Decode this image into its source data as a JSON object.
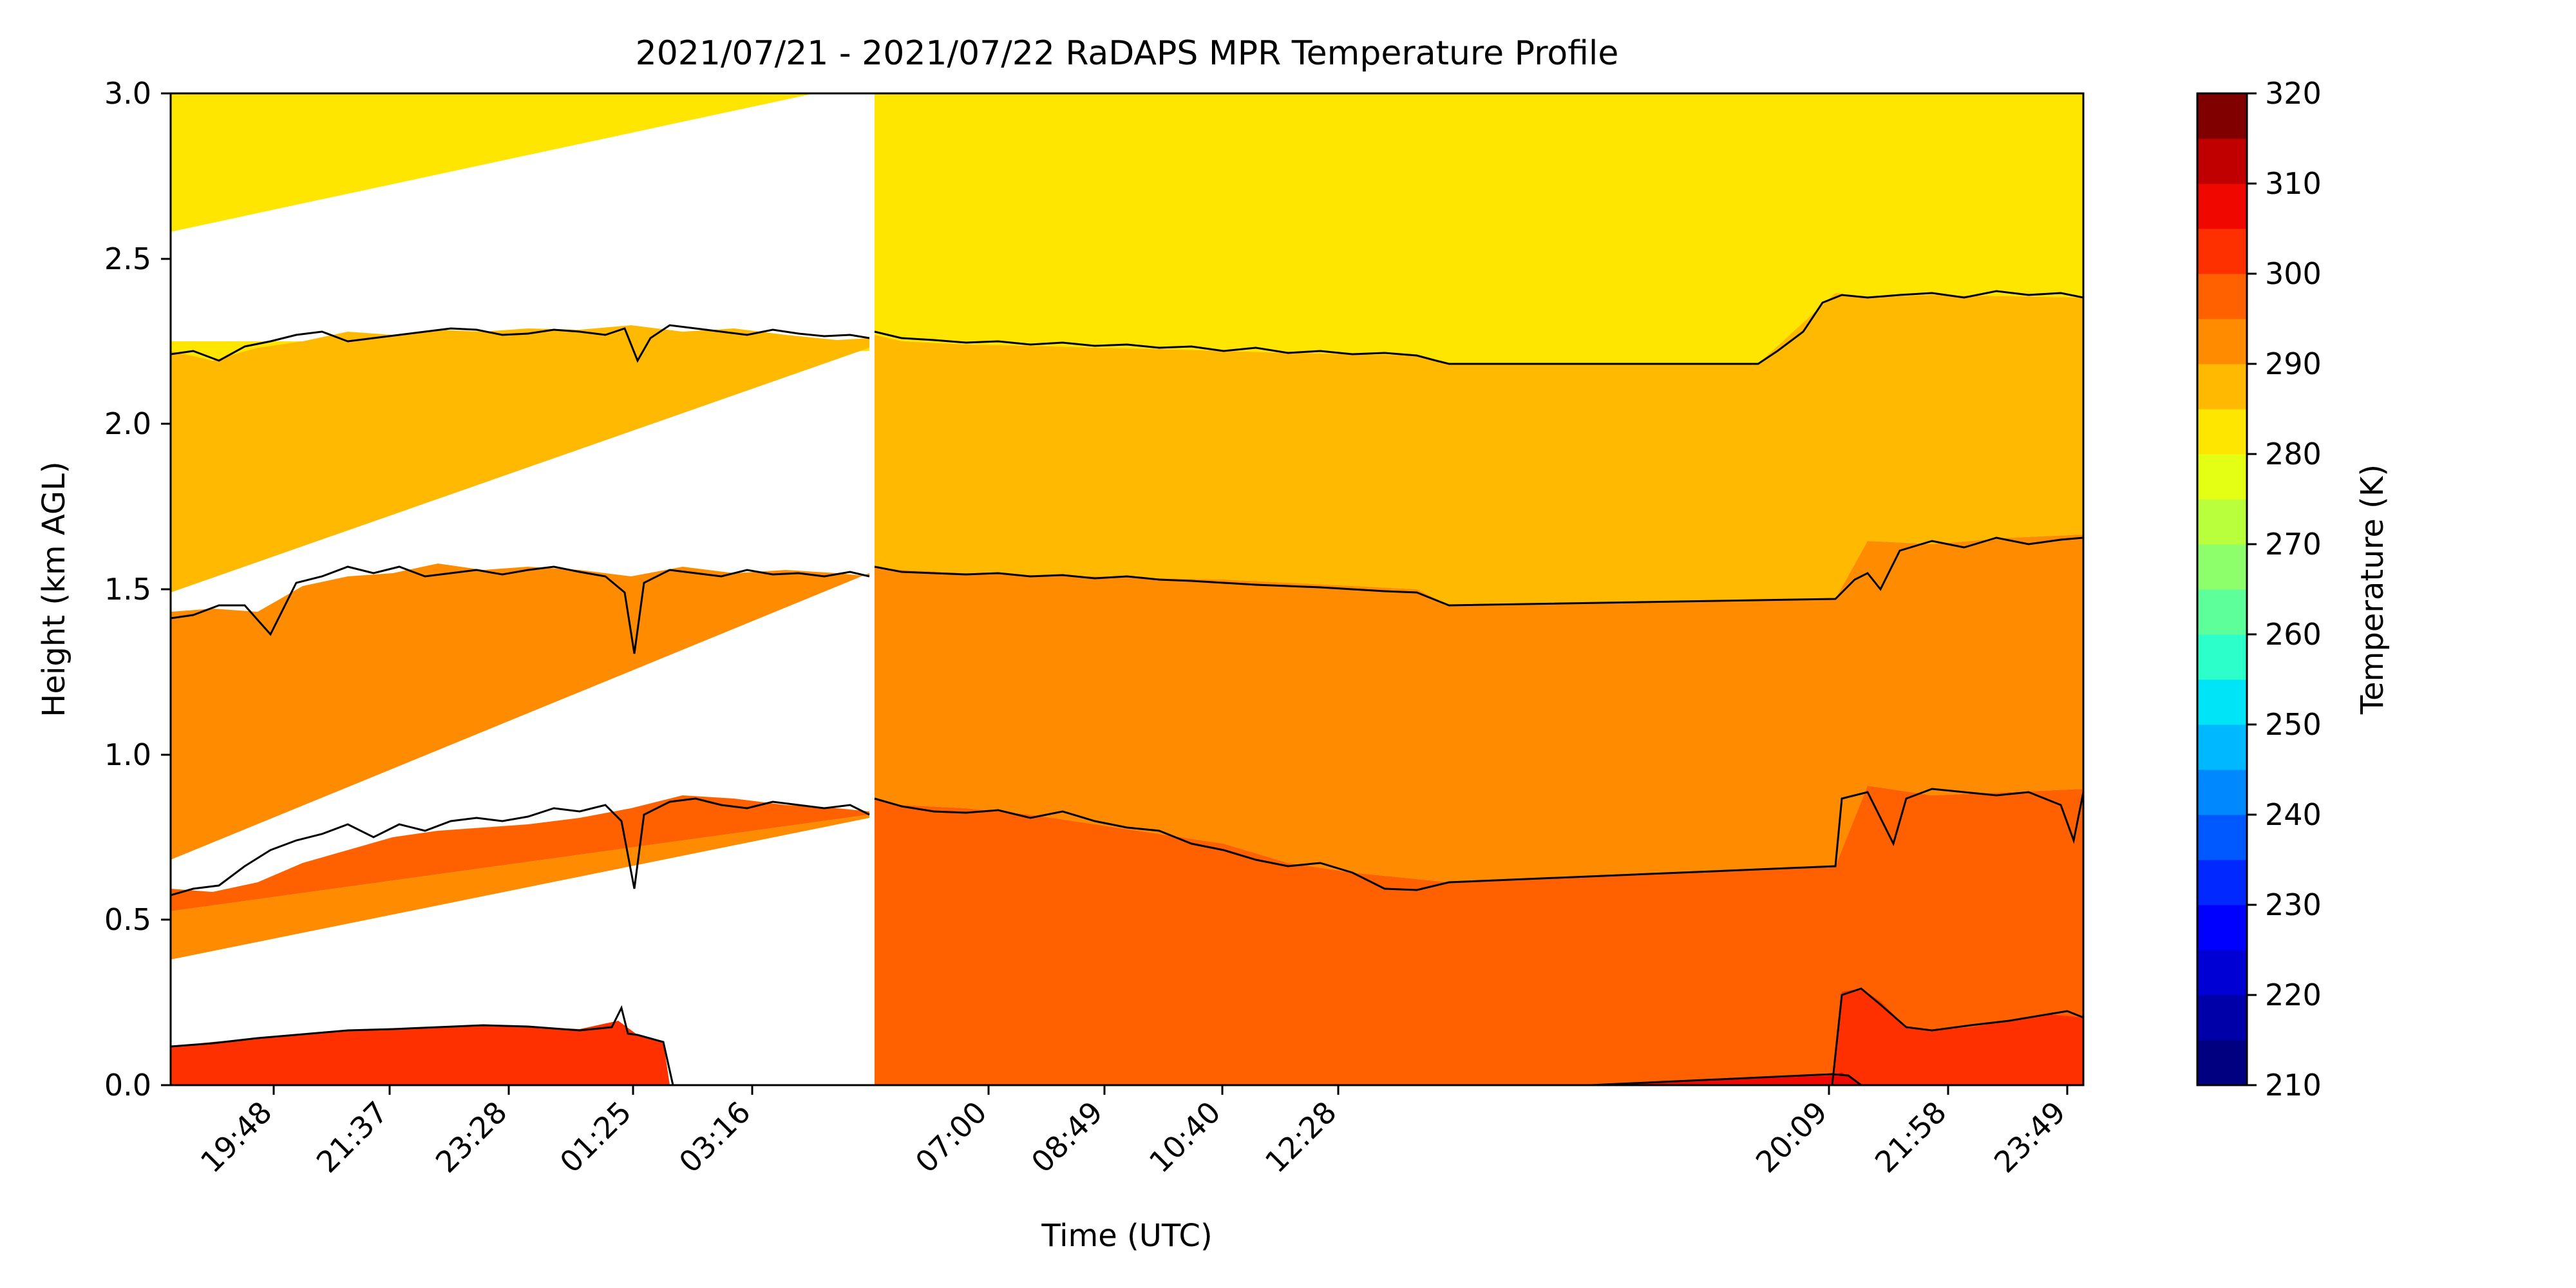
{
  "chart_data": {
    "type": "contour",
    "title": "2021/07/21 - 2021/07/22 RaDAPS MPR Temperature Profile",
    "xlabel": "Time (UTC)",
    "ylabel": "Height (km AGL)",
    "ylim": [
      0,
      3
    ],
    "y_ticks": [
      "0.0",
      "0.5",
      "1.0",
      "1.5",
      "2.0",
      "2.5",
      "3.0"
    ],
    "x_ticks": [
      "19:48",
      "21:37",
      "23:28",
      "01:25",
      "03:16",
      "07:00",
      "08:49",
      "10:40",
      "12:28",
      "20:09",
      "21:58",
      "23:49"
    ],
    "colorbar": {
      "label": "Temperature (K)",
      "range": [
        210,
        320
      ],
      "ticks": [
        "210",
        "220",
        "230",
        "240",
        "250",
        "260",
        "270",
        "280",
        "290",
        "300",
        "310",
        "320"
      ],
      "levels": [
        {
          "from": 210,
          "to": 215,
          "color": "#000080"
        },
        {
          "from": 215,
          "to": 220,
          "color": "#0000a8"
        },
        {
          "from": 220,
          "to": 225,
          "color": "#0000d4"
        },
        {
          "from": 225,
          "to": 230,
          "color": "#0000ff"
        },
        {
          "from": 230,
          "to": 235,
          "color": "#0028ff"
        },
        {
          "from": 235,
          "to": 240,
          "color": "#0058ff"
        },
        {
          "from": 240,
          "to": 245,
          "color": "#0088ff"
        },
        {
          "from": 245,
          "to": 250,
          "color": "#00b8ff"
        },
        {
          "from": 250,
          "to": 255,
          "color": "#00e4f8"
        },
        {
          "from": 255,
          "to": 260,
          "color": "#2cffca"
        },
        {
          "from": 260,
          "to": 265,
          "color": "#5cff9a"
        },
        {
          "from": 265,
          "to": 270,
          "color": "#8cff6a"
        },
        {
          "from": 270,
          "to": 275,
          "color": "#baff3c"
        },
        {
          "from": 275,
          "to": 280,
          "color": "#e4ff14"
        },
        {
          "from": 280,
          "to": 285,
          "color": "#ffe600"
        },
        {
          "from": 285,
          "to": 290,
          "color": "#ffb900"
        },
        {
          "from": 290,
          "to": 295,
          "color": "#ff8c00"
        },
        {
          "from": 295,
          "to": 300,
          "color": "#ff6000"
        },
        {
          "from": 300,
          "to": 305,
          "color": "#ff3000"
        },
        {
          "from": 305,
          "to": 310,
          "color": "#f00800"
        },
        {
          "from": 310,
          "to": 315,
          "color": "#c00000"
        },
        {
          "from": 315,
          "to": 320,
          "color": "#800000"
        }
      ]
    },
    "contour_lines_K": [
      285,
      290,
      295,
      300,
      305
    ],
    "contour_heights_km": {
      "segment_1": {
        "time_range": [
          "19:14",
          "04:40"
        ],
        "285": [
          2.18,
          2.2,
          2.22,
          2.24,
          2.28,
          2.26,
          2.25,
          2.25,
          2.26,
          2.27,
          2.28,
          2.27,
          2.26,
          2.25,
          2.27,
          2.28,
          2.27,
          2.2,
          2.27,
          2.3,
          2.26,
          2.25,
          2.26,
          2.24,
          2.25
        ],
        "290": [
          1.42,
          1.44,
          1.38,
          1.48,
          1.52,
          1.56,
          1.55,
          1.53,
          1.55,
          1.55,
          1.56,
          1.55,
          1.54,
          1.56,
          1.48,
          1.32,
          1.5,
          1.55,
          1.56,
          1.55,
          1.55,
          1.53,
          1.54,
          1.55,
          1.54
        ],
        "295": [
          0.57,
          0.6,
          0.62,
          0.68,
          0.72,
          0.75,
          0.76,
          0.74,
          0.78,
          0.8,
          0.82,
          0.84,
          0.84,
          0.86,
          0.84,
          0.62,
          0.82,
          0.86,
          0.87,
          0.85,
          0.84,
          0.84,
          0.85,
          0.85,
          0.83
        ],
        "300": [
          0.12,
          0.13,
          0.14,
          0.15,
          0.15,
          0.16,
          0.16,
          0.16,
          0.17,
          0.17,
          0.17,
          0.16,
          0.15,
          0.16,
          0.2,
          0.14,
          0.12,
          0.0
        ]
      },
      "segment_2": {
        "time_range": [
          "05:10",
          "23:59"
        ],
        "285": [
          2.25,
          2.24,
          2.23,
          2.22,
          2.23,
          2.22,
          2.21,
          2.22,
          2.2,
          2.21,
          2.2,
          2.19,
          2.18,
          2.18,
          2.18,
          2.18,
          2.26,
          2.33,
          2.36,
          2.38
        ],
        "290": [
          1.55,
          1.54,
          1.54,
          1.53,
          1.53,
          1.52,
          1.51,
          1.5,
          1.49,
          1.48,
          1.47,
          1.46,
          1.46,
          1.46,
          1.46,
          1.47,
          1.6,
          1.64,
          1.66,
          1.64
        ],
        "295": [
          0.86,
          0.84,
          0.82,
          0.8,
          0.8,
          0.78,
          0.74,
          0.68,
          0.64,
          0.6,
          0.61,
          0.6,
          0.62,
          0.63,
          0.64,
          0.66,
          0.84,
          0.9,
          0.88,
          0.86
        ],
        "300": [
          0.0,
          0.0,
          0.0,
          0.04,
          0.3,
          0.25,
          0.2,
          0.2,
          0.21,
          0.21
        ]
      }
    },
    "data_gap": [
      "04:40",
      "05:10"
    ]
  }
}
